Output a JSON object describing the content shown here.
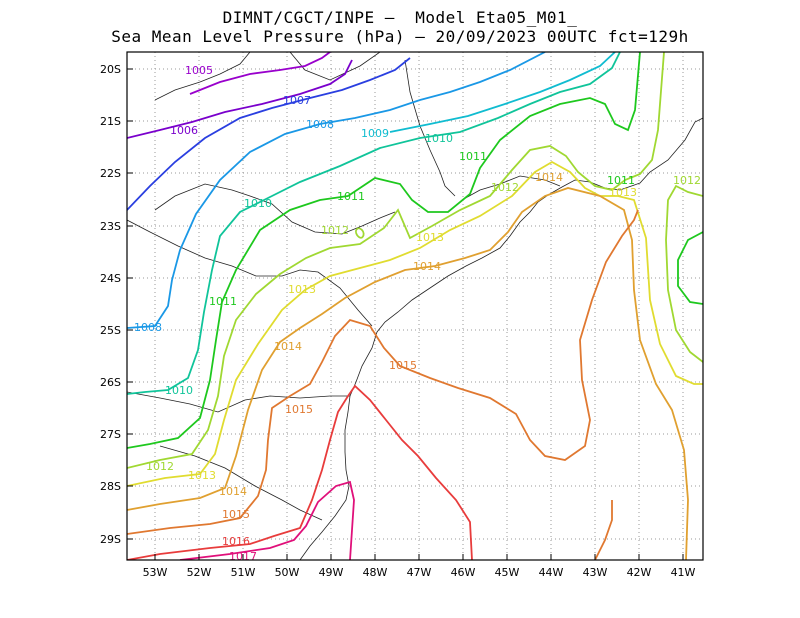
{
  "title_line1": "DIMNT/CGCT/INPE –  Model Eta05_M01_",
  "title_line2": "Sea Mean Level Pressure (hPa) – 20/09/2023 00UTC fct=129h",
  "y_ticks": [
    "20S",
    "21S",
    "22S",
    "23S",
    "24S",
    "25S",
    "26S",
    "27S",
    "28S",
    "29S"
  ],
  "x_ticks": [
    "53W",
    "52W",
    "51W",
    "50W",
    "49W",
    "48W",
    "47W",
    "46W",
    "45W",
    "44W",
    "43W",
    "42W",
    "41W"
  ],
  "chart_data": {
    "type": "contour-map",
    "variable": "Sea Mean Level Pressure",
    "units": "hPa",
    "lon_range": [
      -53.7,
      -40.5
    ],
    "lat_range": [
      -29.4,
      -19.7
    ],
    "grid": true,
    "levels": [
      {
        "value": 1005,
        "label": "1005",
        "color": "#9900cc"
      },
      {
        "value": 1006,
        "label": "1006",
        "color": "#7a00cc"
      },
      {
        "value": 1007,
        "label": "1007",
        "color": "#2a3fe0"
      },
      {
        "value": 1008,
        "label": "1008",
        "color": "#1a98e6"
      },
      {
        "value": 1009,
        "label": "1009",
        "color": "#10bcd0"
      },
      {
        "value": 1010,
        "label": "1010",
        "color": "#10c49a"
      },
      {
        "value": 1011,
        "label": "1011",
        "color": "#1ec81e"
      },
      {
        "value": 1012,
        "label": "1012",
        "color": "#a0d832"
      },
      {
        "value": 1013,
        "label": "1013",
        "color": "#e0dc30"
      },
      {
        "value": 1014,
        "label": "1014",
        "color": "#e0a030"
      },
      {
        "value": 1015,
        "label": "1015",
        "color": "#e07830"
      },
      {
        "value": 1016,
        "label": "1016",
        "color": "#e83c3c"
      },
      {
        "value": 1017,
        "label": "1017",
        "color": "#e0107a"
      }
    ]
  }
}
